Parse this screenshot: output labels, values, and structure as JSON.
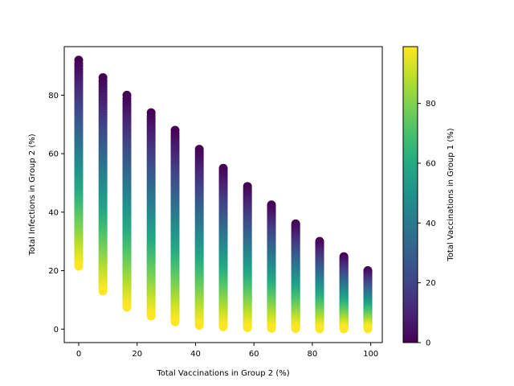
{
  "chart_data": {
    "type": "scatter",
    "title": "",
    "xlabel": "Total Vaccinations in Group 2 (%)",
    "ylabel": "Total Infections in Group 2 (%)",
    "xlim": [
      -4.95,
      103.95
    ],
    "ylim": [
      -4.6,
      96.6
    ],
    "x_ticks": [
      0,
      20,
      40,
      60,
      80,
      100
    ],
    "y_ticks": [
      0,
      20,
      40,
      60,
      80
    ],
    "grid": false,
    "colormap": "viridis",
    "colorbar": {
      "label": "Total Vaccinations in Group 1 (%)",
      "range": [
        0,
        99
      ],
      "ticks": [
        0,
        20,
        40,
        60,
        80
      ]
    },
    "color_variable": "Total Vaccinations in Group 1 (%)",
    "marker_color_range": [
      0,
      99
    ],
    "columns": [
      {
        "x": 0,
        "y_at_color_min": 92.0,
        "y_at_color_max": 21.5
      },
      {
        "x": 8.3,
        "y_at_color_min": 86.0,
        "y_at_color_max": 13.0
      },
      {
        "x": 16.5,
        "y_at_color_min": 80.0,
        "y_at_color_max": 7.5
      },
      {
        "x": 24.8,
        "y_at_color_min": 74.0,
        "y_at_color_max": 4.5
      },
      {
        "x": 33.0,
        "y_at_color_min": 68.0,
        "y_at_color_max": 2.5
      },
      {
        "x": 41.3,
        "y_at_color_min": 61.5,
        "y_at_color_max": 1.3
      },
      {
        "x": 49.5,
        "y_at_color_min": 55.0,
        "y_at_color_max": 0.8
      },
      {
        "x": 57.8,
        "y_at_color_min": 48.8,
        "y_at_color_max": 0.5
      },
      {
        "x": 66.0,
        "y_at_color_min": 42.5,
        "y_at_color_max": 0.3
      },
      {
        "x": 74.3,
        "y_at_color_min": 36.0,
        "y_at_color_max": 0.2
      },
      {
        "x": 82.5,
        "y_at_color_min": 30.0,
        "y_at_color_max": 0.1
      },
      {
        "x": 90.8,
        "y_at_color_min": 24.8,
        "y_at_color_max": 0.1
      },
      {
        "x": 99.0,
        "y_at_color_min": 20.0,
        "y_at_color_max": 0.1
      }
    ]
  }
}
